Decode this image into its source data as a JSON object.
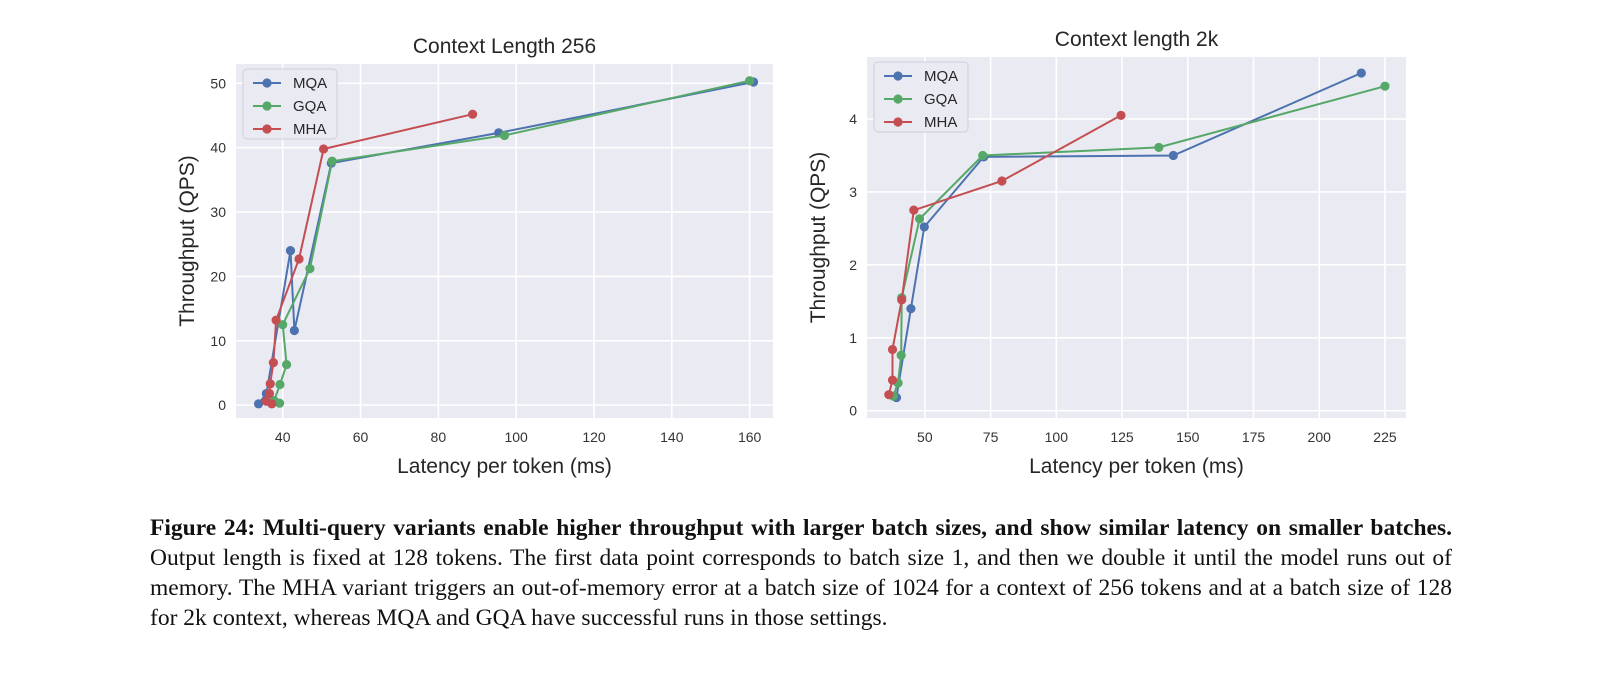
{
  "chart_data": [
    {
      "type": "line",
      "title": "Context Length 256",
      "xlabel": "Latency per token (ms)",
      "ylabel": "Throughput (QPS)",
      "xlim": [
        28,
        166
      ],
      "ylim": [
        -2,
        53
      ],
      "xticks": [
        40,
        60,
        80,
        100,
        120,
        140,
        160
      ],
      "yticks": [
        0,
        10,
        20,
        30,
        40,
        50
      ],
      "grid": true,
      "legend_position": "upper-left",
      "series": [
        {
          "name": "MQA",
          "color": "#4C72B0",
          "points": [
            [
              33.8,
              0.2
            ],
            [
              35.8,
              1.8
            ],
            [
              42,
              24
            ],
            [
              43,
              11.6
            ],
            [
              52.5,
              37.6
            ],
            [
              95.5,
              42.3
            ],
            [
              161,
              50.2
            ]
          ]
        },
        {
          "name": "GQA",
          "color": "#55A868",
          "points": [
            [
              39.2,
              0.3
            ],
            [
              37.8,
              0.7
            ],
            [
              39.3,
              3.2
            ],
            [
              41,
              6.3
            ],
            [
              40,
              12.5
            ],
            [
              47,
              21.2
            ],
            [
              52.7,
              37.9
            ],
            [
              97,
              41.9
            ],
            [
              160,
              50.4
            ]
          ]
        },
        {
          "name": "MHA",
          "color": "#C44E52",
          "points": [
            [
              37.2,
              0.2
            ],
            [
              35.8,
              0.6
            ],
            [
              36.6,
              1.8
            ],
            [
              36.8,
              3.3
            ],
            [
              37.6,
              6.6
            ],
            [
              38.3,
              13.2
            ],
            [
              44.2,
              22.7
            ],
            [
              50.5,
              39.8
            ],
            [
              88.8,
              45.2
            ]
          ]
        }
      ]
    },
    {
      "type": "line",
      "title": "Context length 2k",
      "xlabel": "Latency per token (ms)",
      "ylabel": "Throughput (QPS)",
      "xlim": [
        28,
        233
      ],
      "ylim": [
        -0.1,
        4.85
      ],
      "xticks": [
        50,
        75,
        100,
        125,
        150,
        175,
        200,
        225
      ],
      "yticks": [
        0,
        1,
        2,
        3,
        4
      ],
      "grid": true,
      "legend_position": "upper-left",
      "series": [
        {
          "name": "MQA",
          "color": "#4C72B0",
          "points": [
            [
              39.2,
              0.18
            ],
            [
              44.7,
              1.4
            ],
            [
              49.8,
              2.52
            ],
            [
              72.4,
              3.48
            ],
            [
              144.5,
              3.5
            ],
            [
              216,
              4.63
            ]
          ]
        },
        {
          "name": "GQA",
          "color": "#55A868",
          "points": [
            [
              38,
              0.2
            ],
            [
              39.8,
              0.38
            ],
            [
              41,
              0.76
            ],
            [
              41.2,
              1.55
            ],
            [
              48,
              2.63
            ],
            [
              72,
              3.5
            ],
            [
              139,
              3.61
            ],
            [
              225,
              4.45
            ]
          ]
        },
        {
          "name": "MHA",
          "color": "#C44E52",
          "points": [
            [
              36.3,
              0.22
            ],
            [
              37.7,
              0.42
            ],
            [
              37.7,
              0.84
            ],
            [
              41.2,
              1.52
            ],
            [
              45.8,
              2.75
            ],
            [
              79.3,
              3.15
            ],
            [
              124.6,
              4.05
            ]
          ]
        }
      ]
    }
  ],
  "caption": {
    "label": "Figure 24:",
    "bold_text": "Multi-query variants enable higher throughput with larger batch sizes, and show similar latency on smaller batches.",
    "body_text": "Output length is fixed at 128 tokens. The first data point corresponds to batch size 1, and then we double it until the model runs out of memory. The MHA variant triggers an out-of-memory error at a batch size of 1024 for a context of 256 tokens and at a batch size of 128 for 2k context, whereas MQA and GQA have successful runs in those settings."
  }
}
